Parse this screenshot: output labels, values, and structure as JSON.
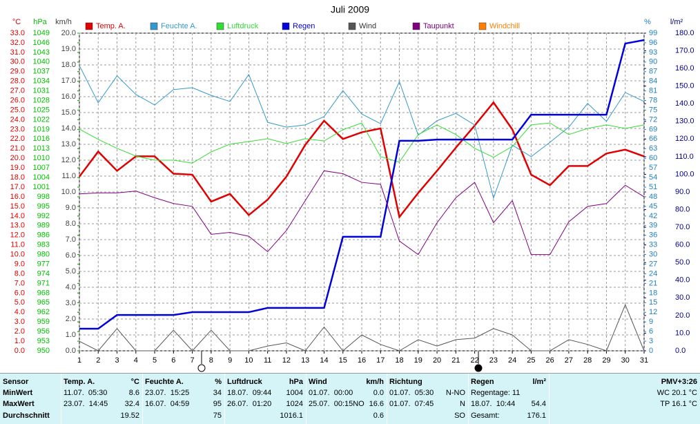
{
  "chart_data": {
    "type": "line",
    "title": "Juli 2009",
    "x": [
      1,
      2,
      3,
      4,
      5,
      6,
      7,
      8,
      9,
      10,
      11,
      12,
      13,
      14,
      15,
      16,
      17,
      18,
      19,
      20,
      21,
      22,
      23,
      24,
      25,
      26,
      27,
      28,
      29,
      30,
      31
    ],
    "xlim": [
      1,
      31
    ],
    "xticks": [
      1,
      2,
      3,
      4,
      5,
      6,
      7,
      8,
      9,
      10,
      11,
      12,
      13,
      14,
      15,
      16,
      17,
      18,
      19,
      20,
      21,
      22,
      23,
      24,
      25,
      26,
      27,
      28,
      29,
      30,
      31
    ],
    "axes": [
      {
        "label": "°C",
        "color": "#e00000",
        "side": "left",
        "lim": [
          0,
          33
        ],
        "ticks": [
          {
            "value": 0,
            "label": "0.0"
          },
          {
            "value": 1,
            "label": "1.0"
          },
          {
            "value": 2,
            "label": "2.0"
          },
          {
            "value": 3,
            "label": "3.0"
          },
          {
            "value": 4,
            "label": "4.0"
          },
          {
            "value": 5,
            "label": "5.0"
          },
          {
            "value": 6,
            "label": "6.0"
          },
          {
            "value": 7,
            "label": "7.0"
          },
          {
            "value": 8,
            "label": "8.0"
          },
          {
            "value": 9,
            "label": "9.0"
          },
          {
            "value": 10,
            "label": "10.0"
          },
          {
            "value": 11,
            "label": "11.0"
          },
          {
            "value": 12,
            "label": "12.0"
          },
          {
            "value": 13,
            "label": "13.0"
          },
          {
            "value": 14,
            "label": "14.0"
          },
          {
            "value": 15,
            "label": "15.0"
          },
          {
            "value": 16,
            "label": "16.0"
          },
          {
            "value": 17,
            "label": "17.0"
          },
          {
            "value": 18,
            "label": "18.0"
          },
          {
            "value": 19,
            "label": "19.0"
          },
          {
            "value": 20,
            "label": "20.0"
          },
          {
            "value": 21,
            "label": "21.0"
          },
          {
            "value": 22,
            "label": "22.0"
          },
          {
            "value": 23,
            "label": "23.0"
          },
          {
            "value": 24,
            "label": "24.0"
          },
          {
            "value": 25,
            "label": "25.0"
          },
          {
            "value": 26,
            "label": "26.0"
          },
          {
            "value": 27,
            "label": "27.0"
          },
          {
            "value": 28,
            "label": "28.0"
          },
          {
            "value": 29,
            "label": "29.0"
          },
          {
            "value": 30,
            "label": "30.0"
          },
          {
            "value": 31,
            "label": "31.0"
          },
          {
            "value": 32,
            "label": "32.0"
          },
          {
            "value": 33,
            "label": "33.0"
          }
        ]
      },
      {
        "label": "hPa",
        "color": "#00c000",
        "side": "left",
        "lim": [
          950,
          1049
        ],
        "ticks": [
          950,
          953,
          956,
          959,
          962,
          965,
          968,
          971,
          974,
          977,
          980,
          983,
          986,
          989,
          992,
          995,
          998,
          1001,
          1004,
          1007,
          1010,
          1013,
          1016,
          1019,
          1022,
          1025,
          1028,
          1031,
          1034,
          1037,
          1040,
          1043,
          1046,
          1049
        ]
      },
      {
        "label": "km/h",
        "color": "#444444",
        "side": "left",
        "grid": true,
        "lim": [
          0,
          20
        ],
        "ticks": [
          {
            "value": 0,
            "label": "0.0"
          },
          {
            "value": 1,
            "label": "1.0"
          },
          {
            "value": 2,
            "label": "2.0"
          },
          {
            "value": 3,
            "label": "3.0"
          },
          {
            "value": 4,
            "label": "4.0"
          },
          {
            "value": 5,
            "label": "5.0"
          },
          {
            "value": 6,
            "label": "6.0"
          },
          {
            "value": 7,
            "label": "7.0"
          },
          {
            "value": 8,
            "label": "8.0"
          },
          {
            "value": 9,
            "label": "9.0"
          },
          {
            "value": 10,
            "label": "10.0"
          },
          {
            "value": 11,
            "label": "11.0"
          },
          {
            "value": 12,
            "label": "12.0"
          },
          {
            "value": 13,
            "label": "13.0"
          },
          {
            "value": 14,
            "label": "14.0"
          },
          {
            "value": 15,
            "label": "15.0"
          },
          {
            "value": 16,
            "label": "16.0"
          },
          {
            "value": 17,
            "label": "17.0"
          },
          {
            "value": 18,
            "label": "18.0"
          },
          {
            "value": 19,
            "label": "19.0"
          },
          {
            "value": 20,
            "label": "20.0"
          }
        ]
      },
      {
        "label": "%",
        "color": "#1f7fbf",
        "side": "right",
        "lim": [
          0,
          99
        ],
        "ticks": [
          0,
          3,
          6,
          9,
          12,
          15,
          18,
          21,
          24,
          27,
          30,
          33,
          36,
          39,
          42,
          45,
          48,
          51,
          54,
          57,
          60,
          63,
          66,
          69,
          72,
          75,
          78,
          81,
          84,
          87,
          90,
          93,
          96,
          99
        ]
      },
      {
        "label": "l/m²",
        "color": "#00007f",
        "side": "right",
        "lim": [
          0,
          180
        ],
        "ticks": [
          {
            "value": 0,
            "label": "0.0"
          },
          {
            "value": 10,
            "label": "10.0"
          },
          {
            "value": 20,
            "label": "20.0"
          },
          {
            "value": 30,
            "label": "30.0"
          },
          {
            "value": 40,
            "label": "40.0"
          },
          {
            "value": 50,
            "label": "50.0"
          },
          {
            "value": 60,
            "label": "60.0"
          },
          {
            "value": 70,
            "label": "70.0"
          },
          {
            "value": 80,
            "label": "80.0"
          },
          {
            "value": 90,
            "label": "90.0"
          },
          {
            "value": 100,
            "label": "100.0"
          },
          {
            "value": 110,
            "label": "110.0"
          },
          {
            "value": 120,
            "label": "120.0"
          },
          {
            "value": 130,
            "label": "130.0"
          },
          {
            "value": 140,
            "label": "140.0"
          },
          {
            "value": 150,
            "label": "150.0"
          },
          {
            "value": 160,
            "label": "160.0"
          },
          {
            "value": 170,
            "label": "170.0"
          },
          {
            "value": 180,
            "label": "180.0"
          }
        ]
      }
    ],
    "series": [
      {
        "name": "Temp. A.",
        "color": "#e00000",
        "axis": 0,
        "width": 2.5,
        "values": [
          18.1,
          20.7,
          18.7,
          20.2,
          20.2,
          18.4,
          18.3,
          15.5,
          16.3,
          14.1,
          15.7,
          18.1,
          21.4,
          23.9,
          22.0,
          22.7,
          23.1,
          13.9,
          16.4,
          18.7,
          21.1,
          23.4,
          25.8,
          23.0,
          18.3,
          17.2,
          19.2,
          19.2,
          20.5,
          20.9,
          20.2
        ]
      },
      {
        "name": "Feuchte A.",
        "color": "#3399cc",
        "axis": 3,
        "width": 1,
        "values": [
          88.9,
          77.3,
          85.7,
          79.9,
          76.6,
          81.4,
          82.0,
          79.6,
          77.7,
          86.1,
          71.2,
          69.7,
          70.4,
          73.0,
          81.1,
          73.8,
          70.8,
          83.9,
          67.2,
          71.7,
          74.0,
          70.4,
          47.6,
          64.1,
          60.5,
          65.0,
          69.7,
          77.1,
          71.5,
          80.5,
          77.7
        ]
      },
      {
        "name": "Luftdruck",
        "color": "#33dd33",
        "axis": 1,
        "width": 1,
        "values": [
          1019.1,
          1015.9,
          1013.1,
          1010.7,
          1009.4,
          1009.4,
          1008.5,
          1012.0,
          1014.4,
          1015.2,
          1016.1,
          1014.6,
          1016.1,
          1015.4,
          1018.9,
          1021.0,
          1010.5,
          1008.8,
          1017.4,
          1020.4,
          1017.4,
          1013.1,
          1010.3,
          1013.7,
          1020.4,
          1021.0,
          1017.4,
          1019.3,
          1020.4,
          1019.3,
          1020.4
        ]
      },
      {
        "name": "Regen",
        "color": "#0000dd",
        "axis": 4,
        "width": 2.5,
        "values": [
          12.5,
          12.5,
          20.3,
          20.3,
          20.3,
          20.3,
          21.9,
          21.9,
          21.9,
          21.9,
          24.3,
          24.3,
          24.3,
          24.3,
          64.6,
          64.6,
          64.6,
          119,
          119,
          119.7,
          119.7,
          119.7,
          119.7,
          119.7,
          133.8,
          133.8,
          133.8,
          133.8,
          133.8,
          174.1,
          176.1
        ]
      },
      {
        "name": "Wind",
        "color": "#555555",
        "axis": 2,
        "width": 1,
        "values": [
          0.6,
          0,
          1.4,
          0,
          0,
          1.3,
          0,
          1.3,
          0,
          0,
          0.3,
          0.5,
          0,
          1.5,
          0,
          1.0,
          0.4,
          0,
          0.7,
          0.3,
          0.7,
          0.8,
          1.4,
          1.0,
          0,
          0,
          0.7,
          0.4,
          0,
          2.9,
          0
        ]
      },
      {
        "name": "Taupunkt",
        "color": "#800080",
        "axis": 0,
        "width": 1,
        "values": [
          16.3,
          16.4,
          16.4,
          16.6,
          15.9,
          15.3,
          15.0,
          12.1,
          12.3,
          11.9,
          10.3,
          12.5,
          15.6,
          18.7,
          18.4,
          17.5,
          17.3,
          11.4,
          10.0,
          13.3,
          15.9,
          17.5,
          13.3,
          15.6,
          10.0,
          10.0,
          13.4,
          15.0,
          15.3,
          17.2,
          16.0
        ]
      },
      {
        "name": "Windchill",
        "color": "#ff8000",
        "axis": 0,
        "width": 1
      }
    ]
  },
  "stats": {
    "headers": [
      {
        "left": "Sensor"
      },
      {
        "left": "Temp. A.",
        "right": "°C"
      },
      {
        "left": "Feuchte A.",
        "right": "%"
      },
      {
        "left": "Luftdruck",
        "right": "hPa"
      },
      {
        "left": "Wind",
        "right": "km/h"
      },
      {
        "left": "Richtung"
      },
      {
        "left": "Regen",
        "right": "l/m²"
      },
      {
        "right": "PMV+3:26"
      }
    ],
    "rows": [
      {
        "label": "MinWert",
        "cells": [
          {
            "left": "11.07.  05:30",
            "right": "8.6"
          },
          {
            "left": "23.07.  15:25",
            "right": "34"
          },
          {
            "left": "18.07.  09:44",
            "right": "1004"
          },
          {
            "left": "01.07.  00:00",
            "right": "0.0"
          },
          {
            "left": "01.07.  05:30",
            "right": "N-NO"
          },
          {
            "left": "Regentage: 11"
          },
          {
            "right": "WC 20.1 °C"
          }
        ]
      },
      {
        "label": "MaxWert",
        "cells": [
          {
            "left": "23.07.  14:45",
            "right": "32.4"
          },
          {
            "left": "16.07.  04:59",
            "right": "95"
          },
          {
            "left": "26.07.  01:20",
            "right": "1024"
          },
          {
            "left": "25.07.  00:15NO",
            "right": "16.6"
          },
          {
            "left": "01.07.  07:45",
            "right": "N"
          },
          {
            "left": "18.07.  10:44",
            "right": "54.4"
          },
          {
            "right": "TP 16.1 °C"
          }
        ]
      },
      {
        "label": "Durchschnitt",
        "cells": [
          {
            "right": "19.52"
          },
          {
            "right": "75"
          },
          {
            "right": "1016.1"
          },
          {
            "right": "0.6"
          },
          {
            "right": "SO"
          },
          {
            "left": "Gesamt:",
            "right": "176.1"
          },
          {}
        ]
      }
    ]
  }
}
